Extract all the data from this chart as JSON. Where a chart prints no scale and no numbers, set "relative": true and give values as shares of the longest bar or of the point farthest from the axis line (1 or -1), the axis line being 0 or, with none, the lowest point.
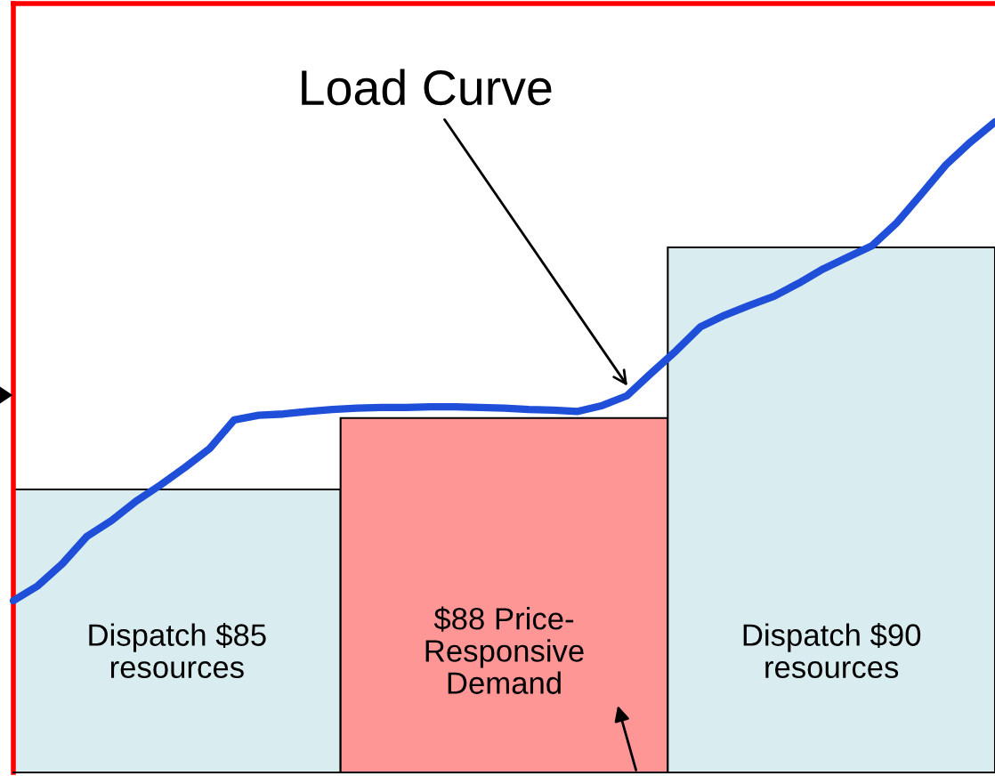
{
  "chart_data": [
    {
      "type": "bar",
      "relative": true,
      "categories": [
        null,
        null,
        null
      ],
      "series": [
        {
          "colors": [
            "#d9ecef",
            "#fe9696",
            "#d9ecef"
          ],
          "values": [
            0.539,
            0.675,
            1.0
          ]
        }
      ],
      "annotations": [
        "Dispatch $85\nresources",
        "$88 Price-\nResponsive\nDemand",
        "Dispatch $90\nresources"
      ]
    },
    {
      "type": "line",
      "relative": true,
      "categories": [
        null,
        null,
        null,
        null,
        null,
        null,
        null,
        null,
        null,
        null,
        null,
        null,
        null,
        null,
        null,
        null,
        null,
        null,
        null,
        null,
        null,
        null,
        null,
        null,
        null,
        null,
        null,
        null,
        null,
        null,
        null,
        null,
        null,
        null,
        null,
        null,
        null,
        null,
        null,
        null,
        null
      ],
      "series": [
        {
          "color": "#1f4fd8",
          "values": [
            0.264,
            0.287,
            0.321,
            0.363,
            0.387,
            0.417,
            0.442,
            0.469,
            0.498,
            0.542,
            0.549,
            0.551,
            0.555,
            0.558,
            0.56,
            0.561,
            0.561,
            0.562,
            0.562,
            0.561,
            0.56,
            0.558,
            0.557,
            0.555,
            0.564,
            0.579,
            0.614,
            0.648,
            0.685,
            0.703,
            0.718,
            0.732,
            0.752,
            0.774,
            0.792,
            0.81,
            0.845,
            0.889,
            0.934,
            0.969,
            1.0
          ]
        }
      ],
      "annotations": [
        "Load Curve"
      ],
      "legend": false,
      "marker": "none",
      "line_style": "solid"
    }
  ]
}
